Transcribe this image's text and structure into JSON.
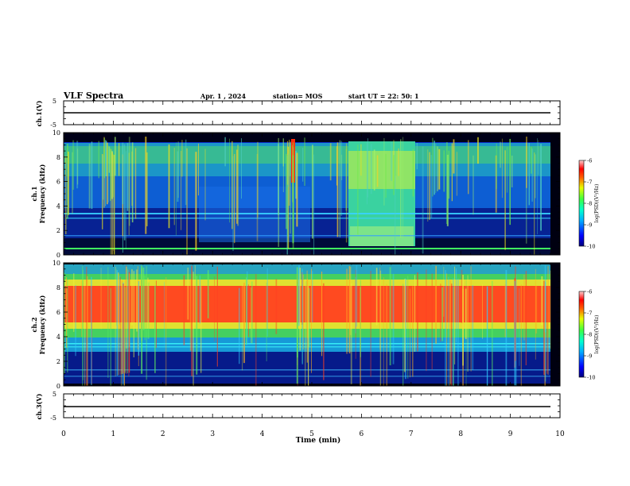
{
  "header": {
    "title": "VLF Spectra",
    "date": "Apr. 1  , 2024",
    "station": "station= MOS",
    "start_time": "start  UT  =   22: 50: 1"
  },
  "chart_data": [
    {
      "type": "line",
      "panel": "ch1-voltage",
      "ylabel": "ch.1(V)",
      "ylim": [
        -5,
        5
      ],
      "yticks": [
        "5",
        "-5"
      ],
      "x": [
        0,
        9.8
      ],
      "values": [
        -1.0,
        -1.0
      ]
    },
    {
      "type": "heatmap",
      "panel": "ch1-spectrogram",
      "ylabel": "ch.1\nFrequency (kHz)",
      "ylim": [
        0,
        10
      ],
      "yticks": [
        "0",
        "2",
        "4",
        "6",
        "8",
        "10"
      ],
      "xlim": [
        0,
        10
      ],
      "data_extent_min": 9.8,
      "colorbar": {
        "label": "log(PSD)(V²/Hz)",
        "range": [
          -10,
          -6
        ],
        "ticks": [
          "-6",
          "-7",
          "-8",
          "-9",
          "-10"
        ]
      },
      "features": [
        {
          "name": "broadband background",
          "t": [
            0,
            9.8
          ],
          "f": [
            0.5,
            9.2
          ],
          "level": -8.8
        },
        {
          "name": "intense burst",
          "t": [
            5.7,
            7.05
          ],
          "f": [
            0.3,
            8.8
          ],
          "level": -7.8
        },
        {
          "name": "spike",
          "t": [
            4.6,
            4.68
          ],
          "f": [
            6.5,
            9.5
          ],
          "level": -6.5
        },
        {
          "name": "narrowband line",
          "t": [
            0,
            9.8
          ],
          "f": [
            3.2,
            3.4
          ],
          "level": -8.8
        },
        {
          "name": "narrowband line",
          "t": [
            0,
            9.8
          ],
          "f": [
            0.6,
            0.6
          ],
          "level": -8.2
        }
      ]
    },
    {
      "type": "heatmap",
      "panel": "ch2-spectrogram",
      "ylabel": "ch.2\nFrequency (kHz)",
      "ylim": [
        0,
        10
      ],
      "yticks": [
        "0",
        "2",
        "4",
        "6",
        "8",
        "10"
      ],
      "xlim": [
        0,
        10
      ],
      "data_extent_min": 9.8,
      "colorbar": {
        "label": "log(PSD)(V²/Hz)",
        "range": [
          -10,
          -6
        ],
        "ticks": [
          "-6",
          "-7",
          "-8",
          "-9",
          "-10"
        ]
      },
      "features": [
        {
          "name": "intense band",
          "t": [
            0,
            9.8
          ],
          "f": [
            5.0,
            8.0
          ],
          "level": -6.8
        },
        {
          "name": "moderate band",
          "t": [
            0,
            9.8
          ],
          "f": [
            3.5,
            9.3
          ],
          "level": -7.8
        },
        {
          "name": "narrowband lines",
          "t": [
            0,
            9.8
          ],
          "f": [
            1.0,
            3.5
          ],
          "level": -9.0
        }
      ]
    },
    {
      "type": "line",
      "panel": "ch3-voltage",
      "ylabel": "ch.3(V)",
      "xlabel": "Time  (min)",
      "ylim": [
        -5,
        5
      ],
      "yticks": [
        "5",
        "-5"
      ],
      "xlim": [
        0,
        10
      ],
      "xticks": [
        "0",
        "1",
        "2",
        "3",
        "4",
        "5",
        "6",
        "7",
        "8",
        "9",
        "10"
      ],
      "x": [
        0,
        9.8
      ],
      "values": [
        -1.0,
        -1.0
      ]
    }
  ]
}
